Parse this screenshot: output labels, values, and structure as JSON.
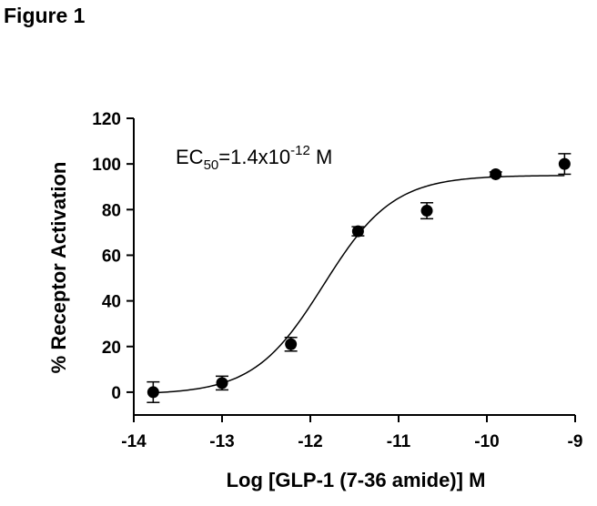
{
  "figure_label": "Figure 1",
  "chart_data": {
    "type": "scatter",
    "xlabel": "Log [GLP-1 (7-36 amide)] M",
    "ylabel": "% Receptor Activation",
    "xlim": [
      -14,
      -9
    ],
    "ylim": [
      -10,
      120
    ],
    "x_ticks": [
      -14,
      -13,
      -12,
      -11,
      -10,
      -9
    ],
    "x_tick_labels": [
      "-14",
      "-13",
      "-12",
      "-11",
      "-10",
      "-9"
    ],
    "y_ticks": [
      0,
      20,
      40,
      60,
      80,
      100,
      120
    ],
    "y_tick_labels": [
      "0",
      "20",
      "40",
      "60",
      "80",
      "100",
      "120"
    ],
    "points": [
      {
        "x": -13.78,
        "y": 0,
        "err": 4.5
      },
      {
        "x": -13.0,
        "y": 4,
        "err": 3
      },
      {
        "x": -12.22,
        "y": 21,
        "err": 3
      },
      {
        "x": -11.46,
        "y": 70.5,
        "err": 2
      },
      {
        "x": -10.68,
        "y": 79.5,
        "err": 3.5
      },
      {
        "x": -9.9,
        "y": 95.5,
        "err": 1
      },
      {
        "x": -9.12,
        "y": 100,
        "err": 4.5
      }
    ],
    "fit_curve": {
      "model": "four-parameter logistic",
      "bottom": -1,
      "top": 95,
      "log_ec50": -11.85,
      "hill_slope": 1.1
    },
    "annotation": {
      "main": "EC",
      "subscript": "50",
      "mid": "=1.4x10",
      "superscript": "-12",
      "unit": " M"
    },
    "grid": false,
    "legend": "none"
  }
}
